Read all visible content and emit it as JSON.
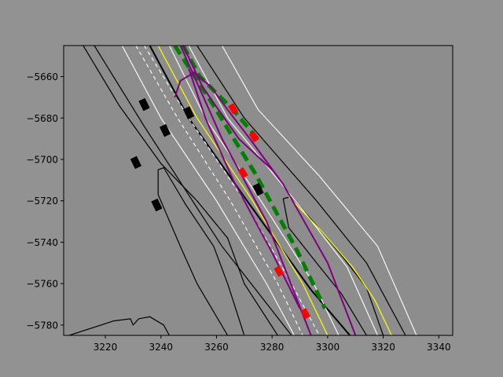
{
  "chart_data": {
    "type": "scatter",
    "title": "",
    "xlabel": "",
    "ylabel": "",
    "xlim": [
      3205,
      3345
    ],
    "ylim": [
      -5785,
      -5645
    ],
    "grid": false,
    "colors": {
      "figure_background": "#929292",
      "road_surface": "#8d8d8d",
      "road_edge": "#000000",
      "lane_line": "#ffffff",
      "center_line": "#ffff00",
      "planned_path": "#008000",
      "candidate_trajectory": "#800080",
      "obstacle_vehicle": "#000000",
      "highlighted_object": "#ff0000"
    },
    "x_ticks": [
      3220,
      3240,
      3260,
      3280,
      3300,
      3320,
      3340
    ],
    "x_tick_labels": [
      "3220",
      "3240",
      "3260",
      "3280",
      "3300",
      "3320",
      "3340"
    ],
    "y_ticks": [
      -5660,
      -5680,
      -5700,
      -5720,
      -5740,
      -5760,
      -5780
    ],
    "y_tick_labels": [
      "−5660",
      "−5680",
      "−5700",
      "−5720",
      "−5740",
      "−5760",
      "−5780"
    ],
    "road_edges": [
      [
        [
          3216,
          -5645
        ],
        [
          3234,
          -5684
        ],
        [
          3262,
          -5742
        ],
        [
          3287,
          -5785
        ]
      ],
      [
        [
          3236,
          -5645
        ],
        [
          3250,
          -5680
        ],
        [
          3271,
          -5720
        ],
        [
          3294,
          -5763
        ],
        [
          3308,
          -5785
        ]
      ],
      [
        [
          3253,
          -5645
        ],
        [
          3270,
          -5680
        ],
        [
          3296,
          -5720
        ],
        [
          3314,
          -5750
        ],
        [
          3328,
          -5785
        ]
      ],
      [
        [
          3212,
          -5645
        ],
        [
          3225,
          -5674
        ],
        [
          3240,
          -5702
        ],
        [
          3253,
          -5720
        ],
        [
          3264,
          -5738
        ],
        [
          3270,
          -5760
        ],
        [
          3282,
          -5785
        ]
      ]
    ],
    "median_islands": [
      [
        [
          3239,
          -5705
        ],
        [
          3241,
          -5704
        ],
        [
          3249,
          -5722
        ],
        [
          3259,
          -5742
        ],
        [
          3264,
          -5760
        ],
        [
          3270,
          -5785
        ],
        [
          3264,
          -5785
        ],
        [
          3253,
          -5760
        ],
        [
          3247,
          -5742
        ],
        [
          3239,
          -5717
        ],
        [
          3239,
          -5705
        ]
      ],
      [
        [
          3284,
          -5719
        ],
        [
          3287,
          -5718
        ],
        [
          3296,
          -5732
        ],
        [
          3306,
          -5748
        ],
        [
          3314,
          -5762
        ],
        [
          3320,
          -5785
        ],
        [
          3314,
          -5785
        ],
        [
          3305,
          -5765
        ],
        [
          3296,
          -5750
        ],
        [
          3286,
          -5733
        ],
        [
          3284,
          -5719
        ]
      ]
    ],
    "parking_boundary": [
      [
        3207,
        -5785
      ],
      [
        3223,
        -5778
      ],
      [
        3229,
        -5777
      ],
      [
        3230,
        -5780
      ],
      [
        3232,
        -5777
      ],
      [
        3236,
        -5776
      ],
      [
        3241,
        -5780
      ],
      [
        3243,
        -5785
      ]
    ],
    "lane_lines": [
      [
        [
          3226,
          -5645
        ],
        [
          3240,
          -5680
        ],
        [
          3260,
          -5720
        ],
        [
          3278,
          -5760
        ],
        [
          3288,
          -5785
        ]
      ],
      [
        [
          3243,
          -5645
        ],
        [
          3256,
          -5680
        ],
        [
          3276,
          -5720
        ],
        [
          3295,
          -5760
        ],
        [
          3304,
          -5785
        ]
      ],
      [
        [
          3250,
          -5645
        ],
        [
          3264,
          -5680
        ],
        [
          3292,
          -5726
        ],
        [
          3307,
          -5752
        ],
        [
          3318,
          -5785
        ]
      ],
      [
        [
          3262,
          -5645
        ],
        [
          3275,
          -5676
        ],
        [
          3297,
          -5708
        ],
        [
          3318,
          -5742
        ],
        [
          3332,
          -5785
        ]
      ]
    ],
    "dashed_lane_lines": [
      [
        [
          3231,
          -5645
        ],
        [
          3246,
          -5680
        ],
        [
          3265,
          -5720
        ],
        [
          3282,
          -5760
        ],
        [
          3291,
          -5785
        ]
      ],
      [
        [
          3234,
          -5645
        ],
        [
          3250,
          -5680
        ],
        [
          3270,
          -5720
        ],
        [
          3287,
          -5760
        ],
        [
          3297,
          -5785
        ]
      ]
    ],
    "center_lines": [
      [
        [
          3239,
          -5645
        ],
        [
          3253,
          -5680
        ],
        [
          3273,
          -5720
        ],
        [
          3291,
          -5760
        ],
        [
          3300,
          -5785
        ]
      ],
      [
        [
          3286,
          -5718
        ],
        [
          3298,
          -5735
        ],
        [
          3309,
          -5752
        ],
        [
          3317,
          -5768
        ],
        [
          3323,
          -5785
        ]
      ]
    ],
    "planned_path_segments": [
      [
        [
          3245,
          -5645
        ],
        [
          3258,
          -5672
        ],
        [
          3274,
          -5707
        ],
        [
          3289,
          -5744
        ],
        [
          3299,
          -5772
        ]
      ],
      [
        [
          3248,
          -5645
        ],
        [
          3254,
          -5660
        ],
        [
          3266,
          -5676
        ],
        [
          3276,
          -5692
        ]
      ]
    ],
    "candidate_trajectories": [
      [
        [
          3247,
          -5645
        ],
        [
          3252,
          -5660
        ],
        [
          3262,
          -5690
        ],
        [
          3278,
          -5730
        ],
        [
          3294,
          -5785
        ]
      ],
      [
        [
          3248,
          -5645
        ],
        [
          3255,
          -5665
        ],
        [
          3268,
          -5690
        ],
        [
          3280,
          -5705
        ]
      ],
      [
        [
          3250,
          -5656
        ],
        [
          3256,
          -5680
        ],
        [
          3266,
          -5710
        ],
        [
          3280,
          -5745
        ],
        [
          3290,
          -5772
        ]
      ],
      [
        [
          3245,
          -5670
        ],
        [
          3247,
          -5662
        ],
        [
          3252,
          -5658
        ],
        [
          3258,
          -5665
        ],
        [
          3264,
          -5676
        ],
        [
          3272,
          -5690
        ],
        [
          3284,
          -5712
        ],
        [
          3300,
          -5750
        ],
        [
          3310,
          -5785
        ]
      ]
    ],
    "obstacle_vehicles": [
      {
        "x": 3234.0,
        "y": -5673.5,
        "heading_deg": -64
      },
      {
        "x": 3241.5,
        "y": -5686.0,
        "heading_deg": -64
      },
      {
        "x": 3250.0,
        "y": -5677.5,
        "heading_deg": -64
      },
      {
        "x": 3231.0,
        "y": -5701.5,
        "heading_deg": -64
      },
      {
        "x": 3238.5,
        "y": -5722.0,
        "heading_deg": -64
      },
      {
        "x": 3275.0,
        "y": -5714.5,
        "heading_deg": -64
      }
    ],
    "highlighted_objects": [
      {
        "x": 3266.0,
        "y": -5675.5,
        "heading_deg": -58
      },
      {
        "x": 3273.5,
        "y": -5689.0,
        "heading_deg": -58
      },
      {
        "x": 3269.5,
        "y": -5706.5,
        "heading_deg": -58
      },
      {
        "x": 3282.5,
        "y": -5754.0,
        "heading_deg": -60
      },
      {
        "x": 3292.0,
        "y": -5774.5,
        "heading_deg": -60
      }
    ]
  }
}
